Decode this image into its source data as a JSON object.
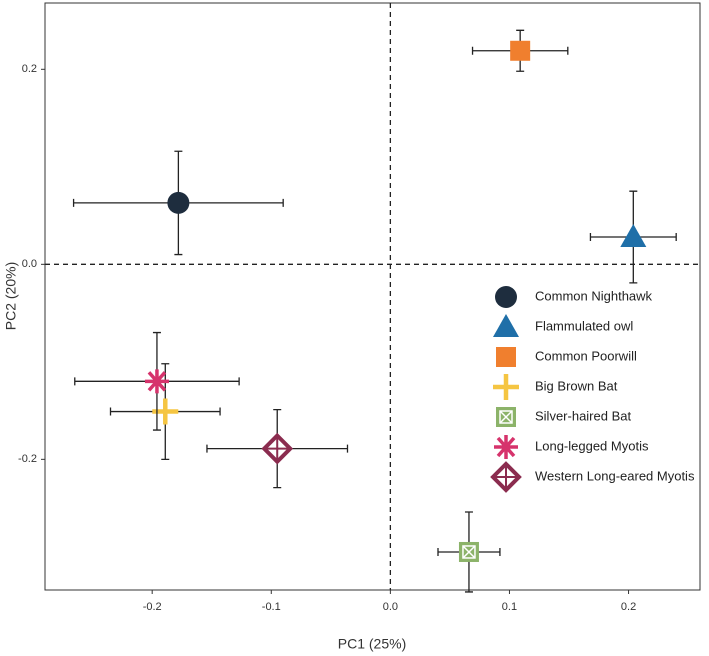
{
  "chart_data": {
    "type": "scatter",
    "xlabel": "PC1 (25%)",
    "ylabel": "PC2 (20%)",
    "xlim": [
      -0.29,
      0.26
    ],
    "ylim": [
      -0.334,
      0.268
    ],
    "xticks": [
      -0.2,
      -0.1,
      {
        "value": 0,
        "label": "0.0"
      },
      0.1,
      0.2
    ],
    "yticks": [
      -0.2,
      {
        "value": 0,
        "label": "0.0"
      },
      0.2
    ],
    "vlines": [
      0
    ],
    "hlines": [
      0
    ],
    "series": [
      {
        "name": "Common Nighthawk",
        "marker": "circle",
        "color": "#1e2d3e",
        "x": [
          -0.178
        ],
        "values": [
          0.063
        ],
        "xerr": [
          0.088
        ],
        "yerr": [
          0.053
        ]
      },
      {
        "name": "Flammulated owl",
        "marker": "triangle",
        "color": "#1f6fa8",
        "x": [
          0.204
        ],
        "values": [
          0.028
        ],
        "xerr": [
          0.036
        ],
        "yerr": [
          0.047
        ]
      },
      {
        "name": "Common Poorwill",
        "marker": "square",
        "color": "#f07f2e",
        "x": [
          0.109
        ],
        "values": [
          0.219
        ],
        "xerr": [
          0.04
        ],
        "yerr": [
          0.021
        ]
      },
      {
        "name": "Big Brown Bat",
        "marker": "plus",
        "color": "#f5c542",
        "x": [
          -0.189
        ],
        "values": [
          -0.151
        ],
        "xerr": [
          0.046
        ],
        "yerr": [
          0.049
        ]
      },
      {
        "name": "Silver-haired Bat",
        "marker": "square-x",
        "color": "#8cb369",
        "x": [
          0.066
        ],
        "values": [
          -0.295
        ],
        "xerr": [
          0.026
        ],
        "yerr": [
          0.041
        ]
      },
      {
        "name": "Long-legged Myotis",
        "marker": "asterisk",
        "color": "#d6336c",
        "x": [
          -0.196
        ],
        "values": [
          -0.12
        ],
        "xerr": [
          0.069
        ],
        "yerr": [
          0.05
        ]
      },
      {
        "name": "Western Long-eared Myotis",
        "marker": "diamond-plus",
        "color": "#8b2c4f",
        "x": [
          -0.095
        ],
        "values": [
          -0.189
        ],
        "xerr": [
          0.059
        ],
        "yerr": [
          0.04
        ]
      }
    ]
  }
}
